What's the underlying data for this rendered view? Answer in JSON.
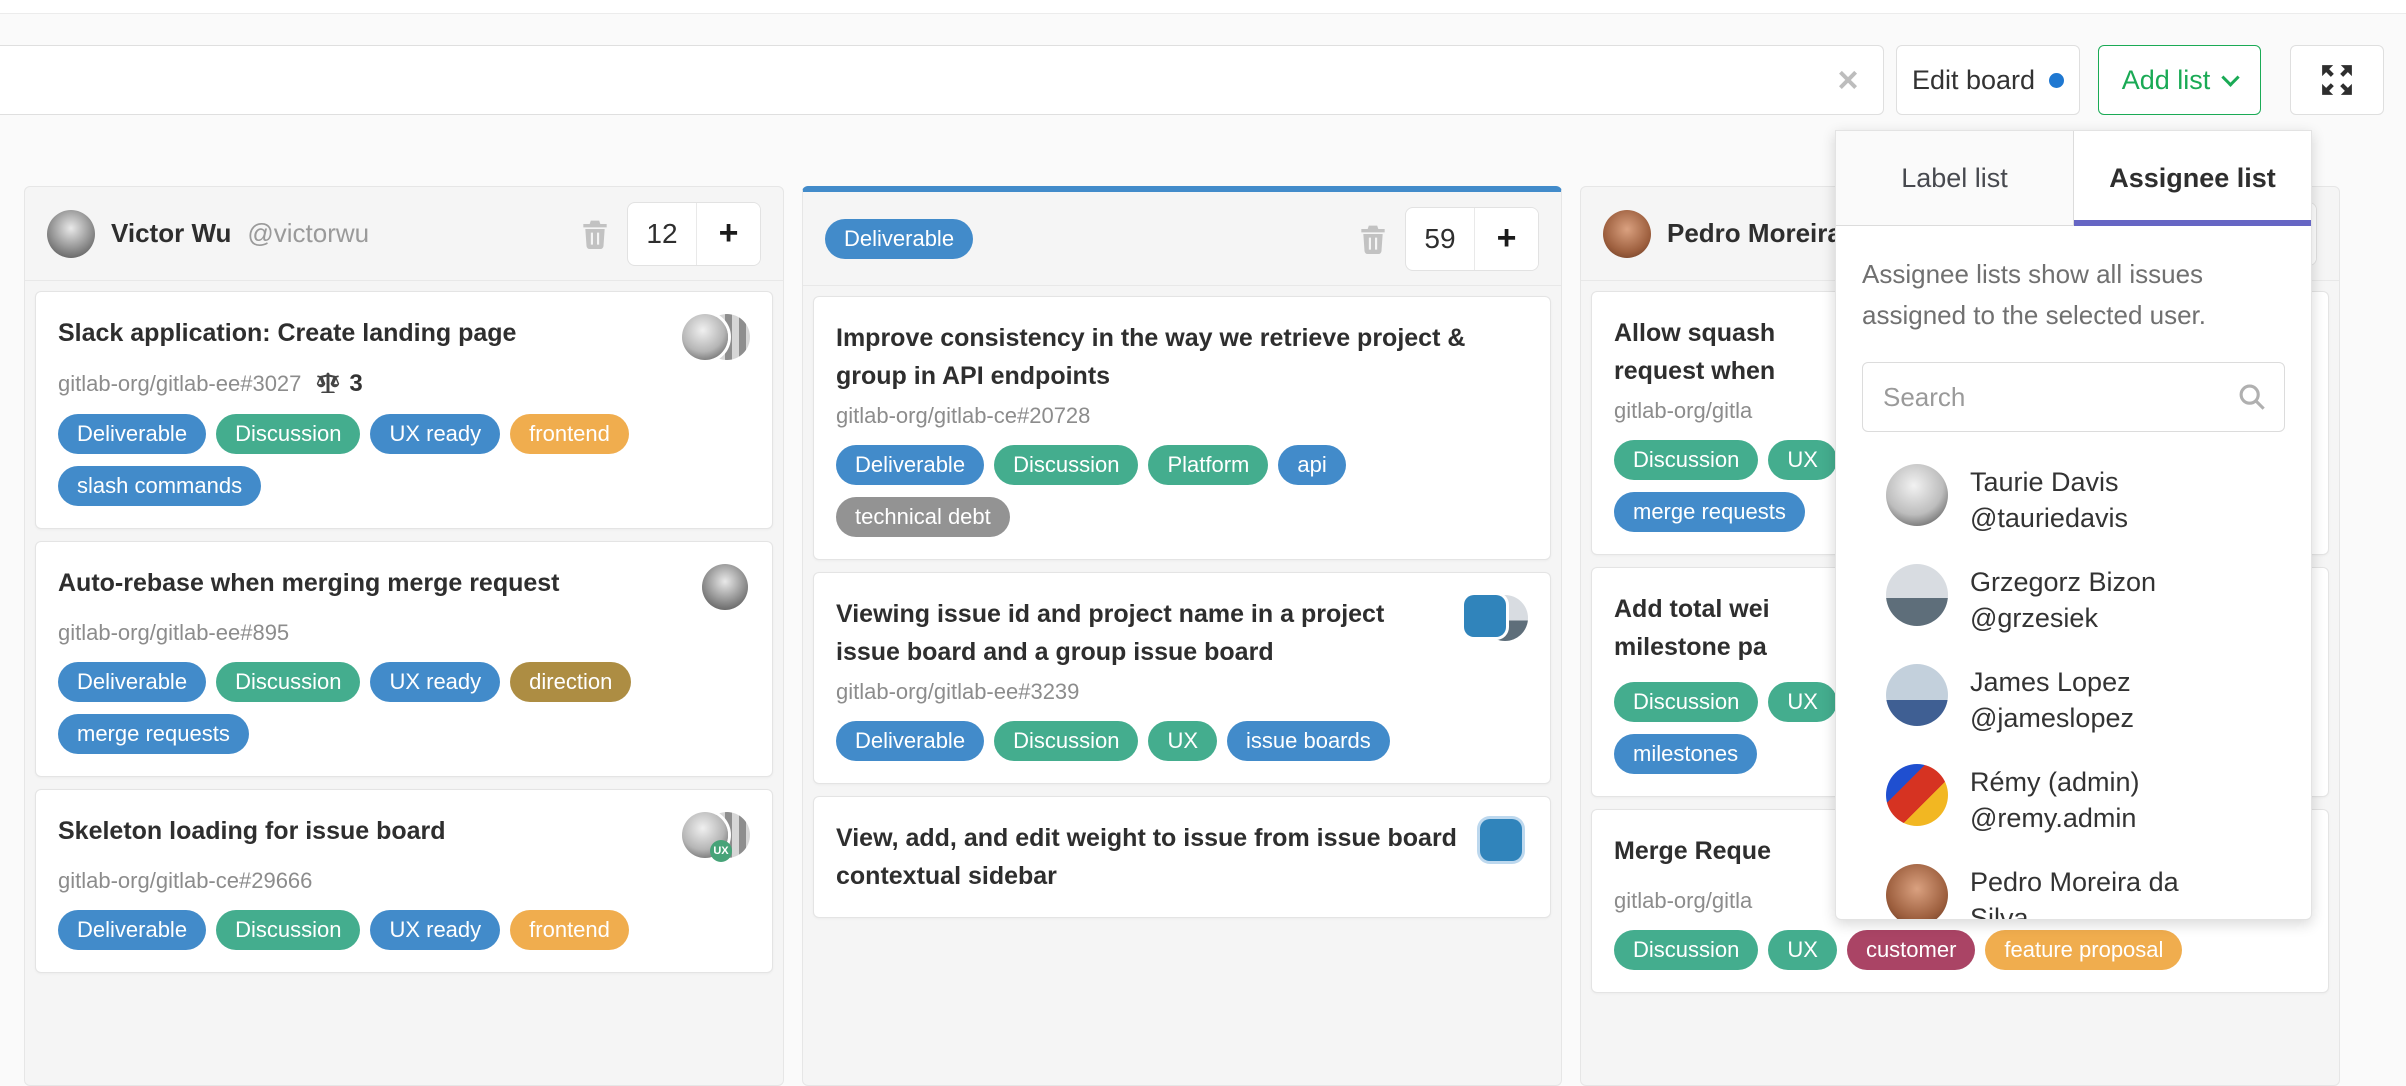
{
  "topbar": {
    "filter_value": "",
    "clear_icon": "×",
    "edit_board_label": "Edit board",
    "add_list_label": "Add list"
  },
  "dropdown": {
    "tabs": [
      {
        "label": "Label list",
        "active": false
      },
      {
        "label": "Assignee list",
        "active": true
      }
    ],
    "active_tab_color": "#6666c4",
    "description": "Assignee lists show all issues assigned to the selected user.",
    "search_placeholder": "Search",
    "users": [
      {
        "name": "Taurie Davis",
        "username": "@tauriedavis",
        "avatar": "taurie"
      },
      {
        "name": "Grzegorz Bizon",
        "username": "@grzesiek",
        "avatar": "grzesiek"
      },
      {
        "name": "James Lopez",
        "username": "@jameslopez",
        "avatar": "james"
      },
      {
        "name": "Rémy (admin)",
        "username": "@remy.admin",
        "avatar": "remy"
      },
      {
        "name": "Pedro Moreira da Silva",
        "username": "",
        "avatar": "pedro"
      }
    ]
  },
  "label_colors": {
    "blue": "#428bca",
    "green": "#44ad8e",
    "orange": "#f0ad4e",
    "gold": "#ad8d43",
    "gray": "#939393",
    "maroon": "#aa4465"
  },
  "board": {
    "columns": [
      {
        "type": "assignee",
        "name": "Victor Wu",
        "username": "@victorwu",
        "avatar": "victorwu",
        "count": "12",
        "cards": [
          {
            "title": "Slack application: Create landing page",
            "ref": "gitlab-org/gitlab-ee#3027",
            "weight": "3",
            "avatars": [
              {
                "style": "bw1"
              },
              {
                "style": "bw2"
              }
            ],
            "labels_rows": [
              [
                {
                  "text": "Deliverable",
                  "color": "blue"
                },
                {
                  "text": "Discussion",
                  "color": "green"
                },
                {
                  "text": "UX ready",
                  "color": "blue"
                },
                {
                  "text": "frontend",
                  "color": "orange"
                }
              ],
              [
                {
                  "text": "slash commands",
                  "color": "blue"
                }
              ]
            ]
          },
          {
            "title": "Auto-rebase when merging merge request",
            "ref": "gitlab-org/gitlab-ee#895",
            "weight": "",
            "avatars": [
              {
                "style": "victorwu"
              }
            ],
            "labels_rows": [
              [
                {
                  "text": "Deliverable",
                  "color": "blue"
                },
                {
                  "text": "Discussion",
                  "color": "green"
                },
                {
                  "text": "UX ready",
                  "color": "blue"
                },
                {
                  "text": "direction",
                  "color": "gold"
                }
              ],
              [
                {
                  "text": "merge requests",
                  "color": "blue"
                }
              ]
            ]
          },
          {
            "title": "Skeleton loading for issue board",
            "ref": "gitlab-org/gitlab-ce#29666",
            "weight": "",
            "avatars": [
              {
                "style": "bw1",
                "badge": "UX"
              },
              {
                "style": "bw2"
              }
            ],
            "labels_rows": [
              [
                {
                  "text": "Deliverable",
                  "color": "blue"
                },
                {
                  "text": "Discussion",
                  "color": "green"
                },
                {
                  "text": "UX ready",
                  "color": "blue"
                },
                {
                  "text": "frontend",
                  "color": "orange"
                }
              ]
            ]
          }
        ]
      },
      {
        "type": "label",
        "label": {
          "text": "Deliverable",
          "color": "blue"
        },
        "accent": "#428bca",
        "count": "59",
        "cards": [
          {
            "title": "Improve consistency in the way we retrieve project & group in API endpoints",
            "ref": "gitlab-org/gitlab-ce#20728",
            "weight": "",
            "avatars": [],
            "labels_rows": [
              [
                {
                  "text": "Deliverable",
                  "color": "blue"
                },
                {
                  "text": "Discussion",
                  "color": "green"
                },
                {
                  "text": "Platform",
                  "color": "green"
                },
                {
                  "text": "api",
                  "color": "blue"
                }
              ],
              [
                {
                  "text": "technical debt",
                  "color": "gray"
                }
              ]
            ]
          },
          {
            "title": "Viewing issue id and project name in a project issue board and a group issue board",
            "ref": "gitlab-org/gitlab-ee#3239",
            "weight": "",
            "avatars": [
              {
                "style": "question"
              },
              {
                "style": "grzesiek"
              }
            ],
            "labels_rows": [
              [
                {
                  "text": "Deliverable",
                  "color": "blue"
                },
                {
                  "text": "Discussion",
                  "color": "green"
                },
                {
                  "text": "UX",
                  "color": "green"
                },
                {
                  "text": "issue boards",
                  "color": "blue"
                }
              ]
            ]
          },
          {
            "title": "View, add, and edit weight to issue from issue board contextual sidebar",
            "ref": "",
            "weight": "",
            "avatars": [
              {
                "style": "question"
              }
            ],
            "labels_rows": []
          }
        ]
      },
      {
        "type": "assignee",
        "name": "Pedro Moreira da Silva",
        "username": "",
        "avatar": "pedro",
        "count": "",
        "cards": [
          {
            "title_lines": [
              "Allow squash",
              "request when"
            ],
            "ref": "gitlab-org/gitla",
            "weight": "",
            "avatars": [
              {
                "style": "pedro"
              }
            ],
            "labels_rows": [
              [
                {
                  "text": "Discussion",
                  "color": "green"
                },
                {
                  "text": "UX",
                  "color": "green"
                }
              ],
              [
                {
                  "text": "merge requests",
                  "color": "blue"
                }
              ]
            ]
          },
          {
            "title_lines": [
              "Add total wei",
              "milestone pa"
            ],
            "ref": "",
            "weight": "",
            "avatars": [
              {
                "style": "pedro"
              }
            ],
            "labels_rows": [
              [
                {
                  "text": "Discussion",
                  "color": "green"
                },
                {
                  "text": "UX",
                  "color": "green"
                }
              ],
              [
                {
                  "text": "milestones",
                  "color": "blue"
                }
              ]
            ]
          },
          {
            "title_lines": [
              "Merge Reque"
            ],
            "ref": "gitlab-org/gitla",
            "weight": "",
            "avatars": [
              {
                "style": "pedro"
              }
            ],
            "labels_rows": [
              [
                {
                  "text": "Discussion",
                  "color": "green"
                },
                {
                  "text": "UX",
                  "color": "green"
                },
                {
                  "text": "customer",
                  "color": "maroon"
                },
                {
                  "text": "feature proposal",
                  "color": "orange"
                }
              ]
            ]
          }
        ]
      }
    ]
  }
}
